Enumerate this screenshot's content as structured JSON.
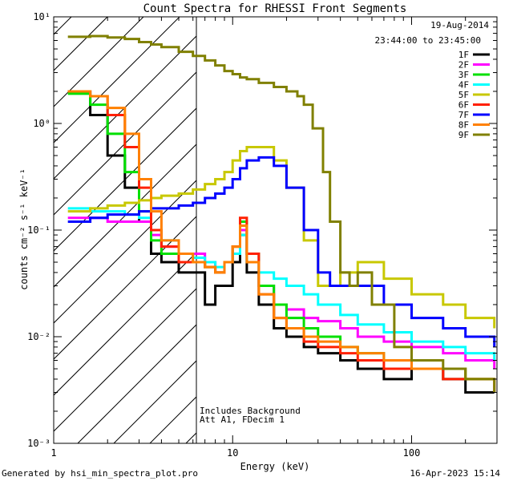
{
  "chart_data": {
    "type": "line",
    "title": "Count Spectra for RHESSI Front Segments",
    "xlabel": "Energy (keV)",
    "ylabel": "counts cm⁻² s⁻¹ keV⁻¹",
    "xscale": "log",
    "yscale": "log",
    "xlim": [
      1,
      300
    ],
    "ylim": [
      0.001,
      10
    ],
    "x_tick_labels": [
      "1",
      "10",
      "100"
    ],
    "y_tick_labels": [
      "10⁻³",
      "10⁻²",
      "10⁻¹",
      "10⁰",
      "10¹"
    ],
    "date": "19-Aug-2014",
    "time_range": "23:44:00 to 23:45:00",
    "annotation_lines": [
      "Includes Background",
      "Att A1, FDecim 1"
    ],
    "footer_left": "Generated by hsi_min_spectra_plot.pro",
    "footer_right": "16-Apr-2023 15:14",
    "shaded_region_max_keV": 6,
    "legend_position": "top-right",
    "series": [
      {
        "name": "1F",
        "color": "#000000",
        "x": [
          1.2,
          1.6,
          2.0,
          2.5,
          3.0,
          3.5,
          4.0,
          5.0,
          6.0,
          7.0,
          8.0,
          9.0,
          10.0,
          11.0,
          12.0,
          14.0,
          17.0,
          20.0,
          25.0,
          30.0,
          40.0,
          50.0,
          70.0,
          100.0,
          150.0,
          200.0,
          290.0
        ],
        "y": [
          2.0,
          1.2,
          0.5,
          0.25,
          0.12,
          0.06,
          0.05,
          0.04,
          0.04,
          0.02,
          0.03,
          0.03,
          0.05,
          0.09,
          0.04,
          0.02,
          0.012,
          0.01,
          0.008,
          0.007,
          0.006,
          0.005,
          0.004,
          0.005,
          0.004,
          0.003,
          0.003
        ]
      },
      {
        "name": "2F",
        "color": "#ff00ff",
        "x": [
          1.2,
          1.6,
          2.0,
          2.5,
          3.0,
          3.5,
          4.0,
          5.0,
          6.0,
          7.0,
          8.0,
          9.0,
          10.0,
          11.0,
          12.0,
          14.0,
          17.0,
          20.0,
          25.0,
          30.0,
          40.0,
          50.0,
          70.0,
          100.0,
          150.0,
          200.0,
          290.0
        ],
        "y": [
          0.13,
          0.13,
          0.12,
          0.12,
          0.12,
          0.09,
          0.07,
          0.06,
          0.06,
          0.05,
          0.04,
          0.05,
          0.06,
          0.1,
          0.06,
          0.03,
          0.02,
          0.018,
          0.015,
          0.014,
          0.012,
          0.01,
          0.009,
          0.008,
          0.007,
          0.006,
          0.005
        ]
      },
      {
        "name": "3F",
        "color": "#00e000",
        "x": [
          1.2,
          1.6,
          2.0,
          2.5,
          3.0,
          3.5,
          4.0,
          5.0,
          6.0,
          7.0,
          8.0,
          9.0,
          10.0,
          11.0,
          12.0,
          14.0,
          17.0,
          20.0,
          25.0,
          30.0,
          40.0,
          50.0,
          70.0,
          100.0,
          150.0,
          200.0,
          290.0
        ],
        "y": [
          1.9,
          1.5,
          0.8,
          0.35,
          0.15,
          0.08,
          0.06,
          0.05,
          0.05,
          0.045,
          0.04,
          0.05,
          0.07,
          0.12,
          0.06,
          0.03,
          0.02,
          0.015,
          0.012,
          0.01,
          0.008,
          0.007,
          0.006,
          0.005,
          0.005,
          0.004,
          0.004
        ]
      },
      {
        "name": "4F",
        "color": "#00ffff",
        "x": [
          1.2,
          1.6,
          2.0,
          2.5,
          3.0,
          3.5,
          4.0,
          5.0,
          6.0,
          7.0,
          8.0,
          9.0,
          10.0,
          11.0,
          12.0,
          14.0,
          17.0,
          20.0,
          25.0,
          30.0,
          40.0,
          50.0,
          70.0,
          100.0,
          150.0,
          200.0,
          290.0
        ],
        "y": [
          0.16,
          0.15,
          0.15,
          0.14,
          0.13,
          0.1,
          0.08,
          0.06,
          0.055,
          0.05,
          0.045,
          0.05,
          0.06,
          0.09,
          0.05,
          0.04,
          0.035,
          0.03,
          0.025,
          0.02,
          0.016,
          0.013,
          0.011,
          0.009,
          0.008,
          0.007,
          0.006
        ]
      },
      {
        "name": "5F",
        "color": "#c8c800",
        "x": [
          1.2,
          1.6,
          2.0,
          2.5,
          3.0,
          3.5,
          4.0,
          5.0,
          6.0,
          7.0,
          8.0,
          9.0,
          10.0,
          11.0,
          12.0,
          14.0,
          17.0,
          20.0,
          25.0,
          30.0,
          35.0,
          40.0,
          50.0,
          70.0,
          100.0,
          150.0,
          200.0,
          290.0
        ],
        "y": [
          0.15,
          0.16,
          0.17,
          0.18,
          0.19,
          0.2,
          0.21,
          0.22,
          0.24,
          0.27,
          0.3,
          0.35,
          0.45,
          0.55,
          0.6,
          0.6,
          0.45,
          0.25,
          0.08,
          0.03,
          0.03,
          0.04,
          0.05,
          0.035,
          0.025,
          0.02,
          0.015,
          0.012
        ]
      },
      {
        "name": "6F",
        "color": "#ff2000",
        "x": [
          1.2,
          1.6,
          2.0,
          2.5,
          3.0,
          3.5,
          4.0,
          5.0,
          6.0,
          7.0,
          8.0,
          9.0,
          10.0,
          11.0,
          12.0,
          14.0,
          17.0,
          20.0,
          25.0,
          30.0,
          40.0,
          50.0,
          70.0,
          100.0,
          150.0,
          200.0,
          290.0
        ],
        "y": [
          2.0,
          1.8,
          1.2,
          0.6,
          0.25,
          0.1,
          0.07,
          0.05,
          0.05,
          0.045,
          0.04,
          0.05,
          0.07,
          0.13,
          0.06,
          0.025,
          0.015,
          0.012,
          0.009,
          0.008,
          0.007,
          0.006,
          0.005,
          0.005,
          0.004,
          0.004,
          0.003
        ]
      },
      {
        "name": "7F",
        "color": "#0000ff",
        "x": [
          1.2,
          1.6,
          2.0,
          2.5,
          3.0,
          3.5,
          4.0,
          5.0,
          6.0,
          7.0,
          8.0,
          9.0,
          10.0,
          11.0,
          12.0,
          14.0,
          17.0,
          20.0,
          25.0,
          30.0,
          35.0,
          40.0,
          50.0,
          70.0,
          100.0,
          150.0,
          200.0,
          290.0
        ],
        "y": [
          0.12,
          0.13,
          0.14,
          0.14,
          0.15,
          0.16,
          0.16,
          0.17,
          0.18,
          0.2,
          0.22,
          0.25,
          0.3,
          0.38,
          0.45,
          0.48,
          0.4,
          0.25,
          0.1,
          0.04,
          0.03,
          0.03,
          0.03,
          0.02,
          0.015,
          0.012,
          0.01,
          0.008
        ]
      },
      {
        "name": "8F",
        "color": "#ff8000",
        "x": [
          1.2,
          1.6,
          2.0,
          2.5,
          3.0,
          3.5,
          4.0,
          5.0,
          6.0,
          7.0,
          8.0,
          9.0,
          10.0,
          11.0,
          12.0,
          14.0,
          17.0,
          20.0,
          25.0,
          30.0,
          40.0,
          50.0,
          70.0,
          100.0,
          150.0,
          200.0,
          290.0
        ],
        "y": [
          2.0,
          1.8,
          1.4,
          0.8,
          0.3,
          0.15,
          0.08,
          0.06,
          0.05,
          0.045,
          0.04,
          0.05,
          0.07,
          0.11,
          0.05,
          0.025,
          0.015,
          0.012,
          0.01,
          0.009,
          0.008,
          0.007,
          0.006,
          0.005,
          0.005,
          0.004,
          0.004
        ]
      },
      {
        "name": "9F",
        "color": "#808000",
        "x": [
          1.2,
          1.6,
          2.0,
          2.5,
          3.0,
          3.5,
          4.0,
          5.0,
          6.0,
          7.0,
          8.0,
          9.0,
          10.0,
          11.0,
          12.0,
          14.0,
          17.0,
          20.0,
          23.0,
          25.0,
          28.0,
          32.0,
          35.0,
          40.0,
          45.0,
          50.0,
          60.0,
          80.0,
          100.0,
          150.0,
          200.0,
          290.0
        ],
        "y": [
          6.5,
          6.6,
          6.4,
          6.2,
          5.8,
          5.5,
          5.2,
          4.7,
          4.3,
          3.9,
          3.5,
          3.1,
          2.9,
          2.7,
          2.6,
          2.4,
          2.2,
          2.0,
          1.8,
          1.5,
          0.9,
          0.35,
          0.12,
          0.04,
          0.03,
          0.04,
          0.02,
          0.008,
          0.006,
          0.005,
          0.004,
          0.003
        ]
      }
    ]
  }
}
